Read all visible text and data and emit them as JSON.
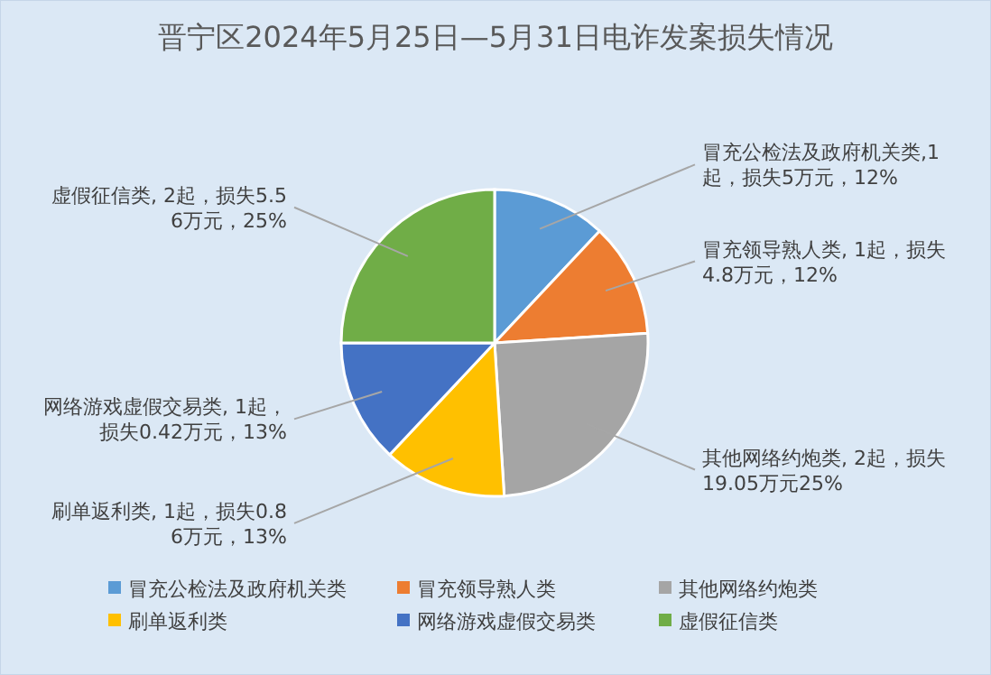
{
  "chart_data": {
    "type": "pie",
    "title": "晋宁区2024年5月25日—5月31日电诈发案损失情况",
    "categories": [
      "冒充公检法及政府机关类",
      "冒充领导熟人类",
      "其他网络约炮类",
      "刷单返利类",
      "网络游戏虚假交易类",
      "虚假征信类"
    ],
    "values": [
      12,
      12,
      25,
      13,
      13,
      25
    ],
    "colors": [
      "#5b9bd5",
      "#ed7d31",
      "#a5a5a5",
      "#ffc000",
      "#4472c4",
      "#70ad47"
    ],
    "value_labels": [
      "冒充公检法及政府机关类,1起，损失5万元，12%",
      "冒充领导熟人类, 1起，损失4.8万元，12%",
      "其他网络约炮类, 2起，损失19.05万元25%",
      "刷单返利类, 1起，损失0.86万元，13%",
      "网络游戏虚假交易类, 1起，损失0.42万元，13%",
      "虚假征信类, 2起，损失5.56万元，25%"
    ],
    "legend": "bottom"
  }
}
